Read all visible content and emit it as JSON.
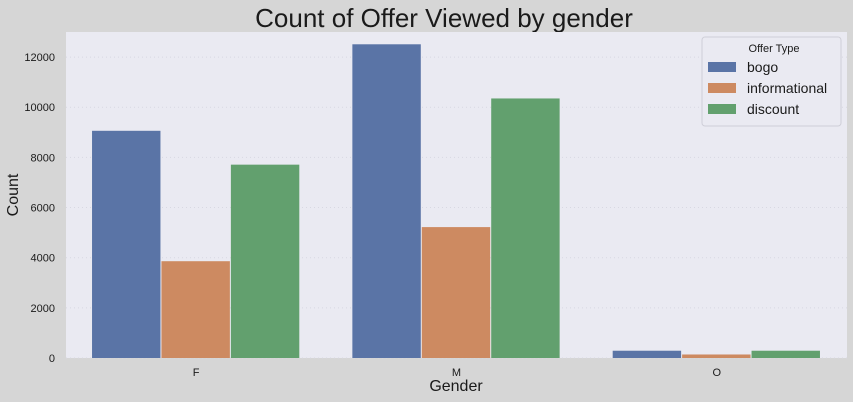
{
  "chart_data": {
    "type": "bar",
    "title": "Count of Offer Viewed by gender",
    "xlabel": "Gender",
    "ylabel": "Count",
    "categories": [
      "F",
      "M",
      "O"
    ],
    "series": [
      {
        "name": "bogo",
        "values": [
          9060,
          12510,
          290
        ],
        "color": "#5a74a6"
      },
      {
        "name": "informational",
        "values": [
          3860,
          5220,
          140
        ],
        "color": "#cd8a61"
      },
      {
        "name": "discount",
        "values": [
          7710,
          10350,
          290
        ],
        "color": "#62a06e"
      }
    ],
    "ylim": [
      0,
      13000
    ],
    "yticks": [
      0,
      2000,
      4000,
      6000,
      8000,
      10000,
      12000
    ],
    "grid": true,
    "legend": {
      "title": "Offer Type",
      "placement": "top-right"
    },
    "colors": {
      "plot_background": "#eaeaf2",
      "figure_background": "#d6d6d6"
    }
  }
}
